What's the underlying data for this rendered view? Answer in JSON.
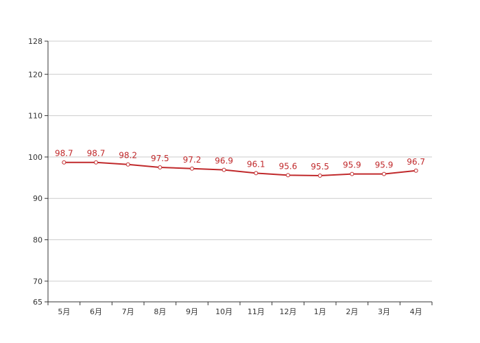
{
  "chart_data": {
    "type": "line",
    "categories": [
      "5月",
      "6月",
      "7月",
      "8月",
      "9月",
      "10月",
      "11月",
      "12月",
      "1月",
      "2月",
      "3月",
      "4月"
    ],
    "series": [
      {
        "values": [
          98.7,
          98.7,
          98.2,
          97.5,
          97.2,
          96.9,
          96.1,
          95.6,
          95.5,
          95.9,
          95.9,
          96.7
        ]
      }
    ],
    "ylim": [
      65,
      128
    ],
    "yticks": [
      65,
      70,
      80,
      90,
      100,
      110,
      120,
      128
    ],
    "grid": true,
    "data_labels": true,
    "colors": {
      "line": "#c0282a",
      "grid": "#cccccc",
      "axis": "#333333"
    }
  }
}
